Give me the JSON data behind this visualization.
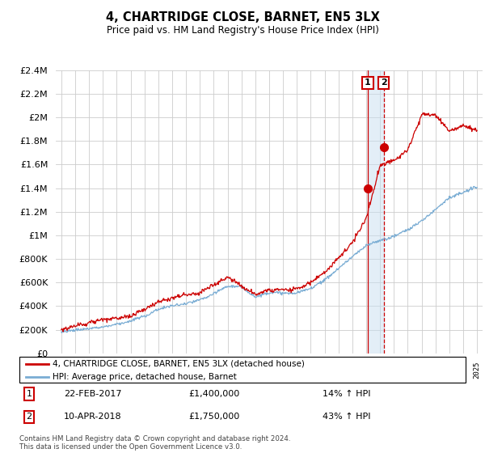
{
  "title": "4, CHARTRIDGE CLOSE, BARNET, EN5 3LX",
  "subtitle": "Price paid vs. HM Land Registry's House Price Index (HPI)",
  "legend_line1": "4, CHARTRIDGE CLOSE, BARNET, EN5 3LX (detached house)",
  "legend_line2": "HPI: Average price, detached house, Barnet",
  "annotation1_label": "1",
  "annotation1_date": "22-FEB-2017",
  "annotation1_price": "£1,400,000",
  "annotation1_hpi": "14% ↑ HPI",
  "annotation1_year": 2017.12,
  "annotation1_value": 1400000,
  "annotation2_label": "2",
  "annotation2_date": "10-APR-2018",
  "annotation2_price": "£1,750,000",
  "annotation2_hpi": "43% ↑ HPI",
  "annotation2_year": 2018.27,
  "annotation2_value": 1750000,
  "footer": "Contains HM Land Registry data © Crown copyright and database right 2024.\nThis data is licensed under the Open Government Licence v3.0.",
  "line1_color": "#cc0000",
  "line2_color": "#7aadd4",
  "shade_color": "#c8dff0",
  "ylim": [
    0,
    2400000
  ],
  "yticks": [
    0,
    200000,
    400000,
    600000,
    800000,
    1000000,
    1200000,
    1400000,
    1600000,
    1800000,
    2000000,
    2200000,
    2400000
  ],
  "background_color": "#ffffff",
  "grid_color": "#cccccc",
  "figsize": [
    6.0,
    5.6
  ],
  "dpi": 100
}
